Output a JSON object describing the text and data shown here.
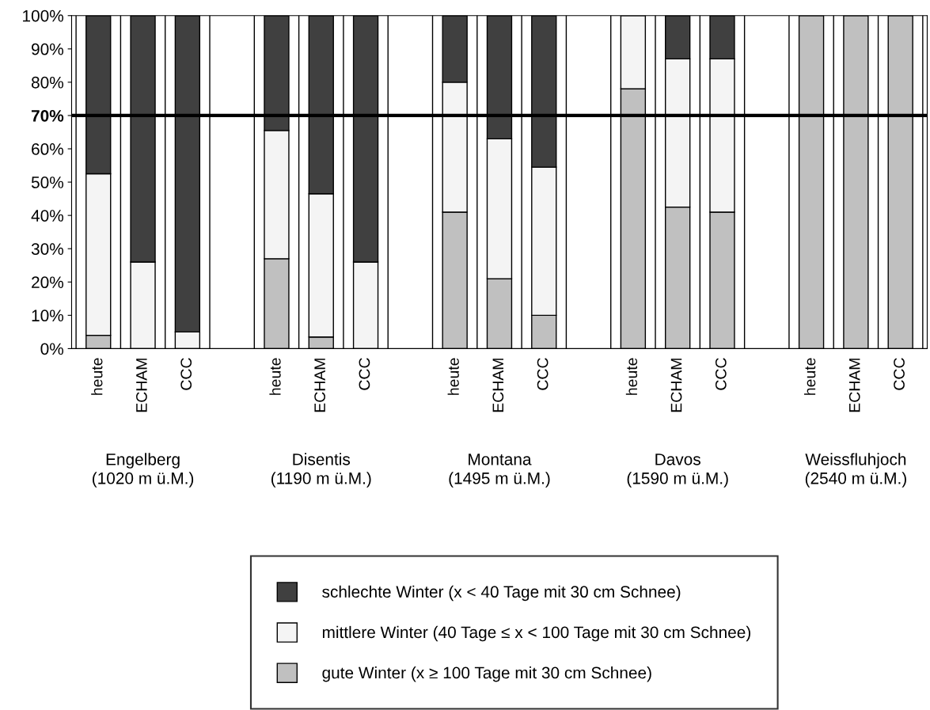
{
  "chart_data": {
    "type": "bar",
    "stacked": true,
    "categories": [
      "heute",
      "ECHAM",
      "CCC",
      null,
      "heute",
      "ECHAM",
      "CCC",
      null,
      "heute",
      "ECHAM",
      "CCC",
      null,
      "heute",
      "ECHAM",
      "CCC",
      null,
      "heute",
      "ECHAM",
      "CCC"
    ],
    "series": [
      {
        "name": "gute Winter (x ≥ 100 Tage mit 30 cm Schnee)",
        "color": "#c0c0c0",
        "values": [
          4,
          0,
          0,
          null,
          27,
          3.5,
          0,
          null,
          41,
          21,
          10,
          null,
          78,
          42.5,
          41,
          null,
          100,
          100,
          100
        ]
      },
      {
        "name": "mittlere Winter (40 Tage ≤ x < 100 Tage mit 30 cm Schnee)",
        "color": "#f4f4f4",
        "values": [
          48.5,
          26,
          5,
          null,
          38.5,
          43,
          26,
          null,
          39,
          42,
          44.5,
          null,
          22,
          44.5,
          46,
          null,
          0,
          0,
          0
        ]
      },
      {
        "name": "schlechte Winter (x < 40 Tage mit 30 cm Schnee)",
        "color": "#404040",
        "values": [
          47.5,
          74,
          95,
          null,
          34.5,
          53.5,
          74,
          null,
          20,
          37,
          45.5,
          null,
          0,
          13,
          13,
          null,
          0,
          0,
          0
        ]
      }
    ],
    "ylim": [
      0,
      100
    ],
    "yticks": [
      {
        "value": 0,
        "label": "0%"
      },
      {
        "value": 10,
        "label": "10%"
      },
      {
        "value": 20,
        "label": "20%"
      },
      {
        "value": 30,
        "label": "30%"
      },
      {
        "value": 40,
        "label": "40%"
      },
      {
        "value": 50,
        "label": "50%"
      },
      {
        "value": 60,
        "label": "60%"
      },
      {
        "value": 70,
        "label": "70%"
      },
      {
        "value": 80,
        "label": "80%"
      },
      {
        "value": 90,
        "label": "90%"
      },
      {
        "value": 100,
        "label": "100%"
      }
    ],
    "ref_lines": [
      {
        "axis": "y",
        "value": 70,
        "color": "#000000"
      }
    ],
    "annotations": [
      "Engelberg\n(1020 m ü.M.)",
      "Disentis\n(1190 m ü.M.)",
      "Montana\n(1495 m ü.M.)",
      "Davos\n(1590 m ü.M.)",
      "Weissfluhjoch\n(2540 m ü.M.)"
    ],
    "grid": "x",
    "legend": "bottom"
  }
}
